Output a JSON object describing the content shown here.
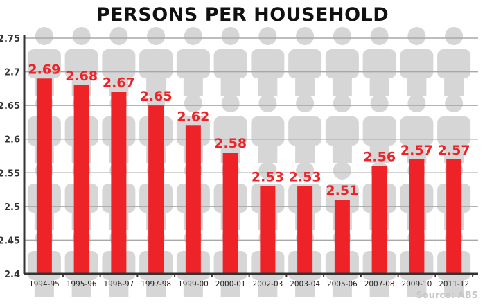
{
  "chart_data": {
    "type": "bar",
    "title": "PERSONS PER HOUSEHOLD",
    "categories": [
      "1994-95",
      "1995-96",
      "1996-97",
      "1997-98",
      "1999-00",
      "2000-01",
      "2002-03",
      "2003-04",
      "2005-06",
      "2007-08",
      "2009-10",
      "2011-12"
    ],
    "values": [
      2.69,
      2.68,
      2.67,
      2.65,
      2.62,
      2.58,
      2.53,
      2.53,
      2.51,
      2.56,
      2.57,
      2.57
    ],
    "value_labels": [
      "2.69",
      "2.68",
      "2.67",
      "2.65",
      "2.62",
      "2.58",
      "2.53",
      "2.53",
      "2.51",
      "2.56",
      "2.57",
      "2.57"
    ],
    "xlabel": "",
    "ylabel": "",
    "ylim": [
      2.4,
      2.75
    ],
    "yticks": [
      "2.4",
      "2.45",
      "2.5",
      "2.55",
      "2.6",
      "2.65",
      "2.7",
      "2.75"
    ],
    "grid": true,
    "bar_color": "#ee2328",
    "label_color": "#ee2328",
    "background": "person-silhouettes",
    "source": "Source: ABS"
  }
}
